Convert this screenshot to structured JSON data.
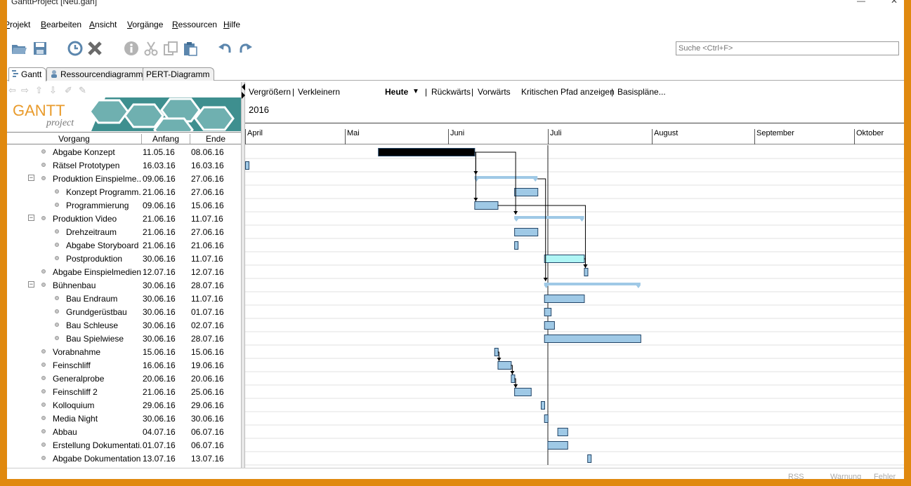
{
  "window": {
    "title": "GanttProject [Neu.gan]"
  },
  "menu": [
    "Projekt",
    "Bearbeiten",
    "Ansicht",
    "Vorgänge",
    "Ressourcen",
    "Hilfe"
  ],
  "menu_accel": [
    "P",
    "B",
    "A",
    "V",
    "R",
    "H"
  ],
  "toolbar": {
    "icons": [
      "open-folder-icon",
      "save-icon",
      "clock-icon",
      "delete-icon",
      "info-icon",
      "cut-icon",
      "copy-icon",
      "paste-icon",
      "undo-icon",
      "redo-icon"
    ]
  },
  "search": {
    "placeholder": "Suche <Ctrl+F>"
  },
  "tabs": [
    {
      "label": "Gantt",
      "icon": "gantt-icon",
      "active": true
    },
    {
      "label": "Ressourcendiagramm",
      "icon": "resource-icon",
      "active": false
    },
    {
      "label": "PERT-Diagramm",
      "icon": "",
      "active": false
    }
  ],
  "logo": {
    "text": "GANTT",
    "sub": "project"
  },
  "tree": {
    "columns": [
      "Vorgang",
      "Anfang",
      "Ende"
    ],
    "rows": [
      {
        "name": "Abgabe Konzept",
        "start": "11.05.16",
        "end": "08.06.16",
        "level": 0,
        "group": false
      },
      {
        "name": "Rätsel Prototypen",
        "start": "16.03.16",
        "end": "16.03.16",
        "level": 0,
        "group": false
      },
      {
        "name": "Produktion Einspielme...",
        "start": "09.06.16",
        "end": "27.06.16",
        "level": 0,
        "group": true
      },
      {
        "name": "Konzept Programm...",
        "start": "21.06.16",
        "end": "27.06.16",
        "level": 1,
        "group": false
      },
      {
        "name": "Programmierung",
        "start": "09.06.16",
        "end": "15.06.16",
        "level": 1,
        "group": false
      },
      {
        "name": "Produktion Video",
        "start": "21.06.16",
        "end": "11.07.16",
        "level": 0,
        "group": true
      },
      {
        "name": "Drehzeitraum",
        "start": "21.06.16",
        "end": "27.06.16",
        "level": 1,
        "group": false
      },
      {
        "name": "Abgabe Storyboard",
        "start": "21.06.16",
        "end": "21.06.16",
        "level": 1,
        "group": false
      },
      {
        "name": "Postproduktion",
        "start": "30.06.16",
        "end": "11.07.16",
        "level": 1,
        "group": false
      },
      {
        "name": "Abgabe Einspielmedien",
        "start": "12.07.16",
        "end": "12.07.16",
        "level": 0,
        "group": false
      },
      {
        "name": "Bühnenbau",
        "start": "30.06.16",
        "end": "28.07.16",
        "level": 0,
        "group": true
      },
      {
        "name": "Bau Endraum",
        "start": "30.06.16",
        "end": "11.07.16",
        "level": 1,
        "group": false
      },
      {
        "name": "Grundgerüstbau",
        "start": "30.06.16",
        "end": "01.07.16",
        "level": 1,
        "group": false
      },
      {
        "name": "Bau Schleuse",
        "start": "30.06.16",
        "end": "02.07.16",
        "level": 1,
        "group": false
      },
      {
        "name": "Bau Spielwiese",
        "start": "30.06.16",
        "end": "28.07.16",
        "level": 1,
        "group": false
      },
      {
        "name": "Vorabnahme",
        "start": "15.06.16",
        "end": "15.06.16",
        "level": 0,
        "group": false
      },
      {
        "name": "Feinschliff",
        "start": "16.06.16",
        "end": "19.06.16",
        "level": 0,
        "group": false
      },
      {
        "name": "Generalprobe",
        "start": "20.06.16",
        "end": "20.06.16",
        "level": 0,
        "group": false
      },
      {
        "name": "Feinschliff 2",
        "start": "21.06.16",
        "end": "25.06.16",
        "level": 0,
        "group": false
      },
      {
        "name": "Kolloquium",
        "start": "29.06.16",
        "end": "29.06.16",
        "level": 0,
        "group": false
      },
      {
        "name": "Media Night",
        "start": "30.06.16",
        "end": "30.06.16",
        "level": 0,
        "group": false
      },
      {
        "name": "Abbau",
        "start": "04.07.16",
        "end": "06.07.16",
        "level": 0,
        "group": false
      },
      {
        "name": "Erstellung Dokumentati...",
        "start": "01.07.16",
        "end": "06.07.16",
        "level": 0,
        "group": false
      },
      {
        "name": "Abgabe Dokumentation",
        "start": "13.07.16",
        "end": "13.07.16",
        "level": 0,
        "group": false
      }
    ]
  },
  "gantt": {
    "zoom_in": "Vergrößern",
    "zoom_out": "Verkleinern",
    "today": "Heute",
    "back": "Rückwärts",
    "forward": "Vorwärts",
    "critical": "Kritischen Pfad anzeigen",
    "baselines": "Basispläne...",
    "year": "2016",
    "months": [
      "April",
      "Mai",
      "Juni",
      "Juli",
      "August",
      "September",
      "Oktober"
    ],
    "colors": {
      "bar": "#9fc9e6",
      "selected": "#aff5f5",
      "critical": "#000000",
      "summary": "#9fc9e6"
    }
  },
  "status": [
    "RSS",
    "Warnung",
    "Fehler"
  ]
}
